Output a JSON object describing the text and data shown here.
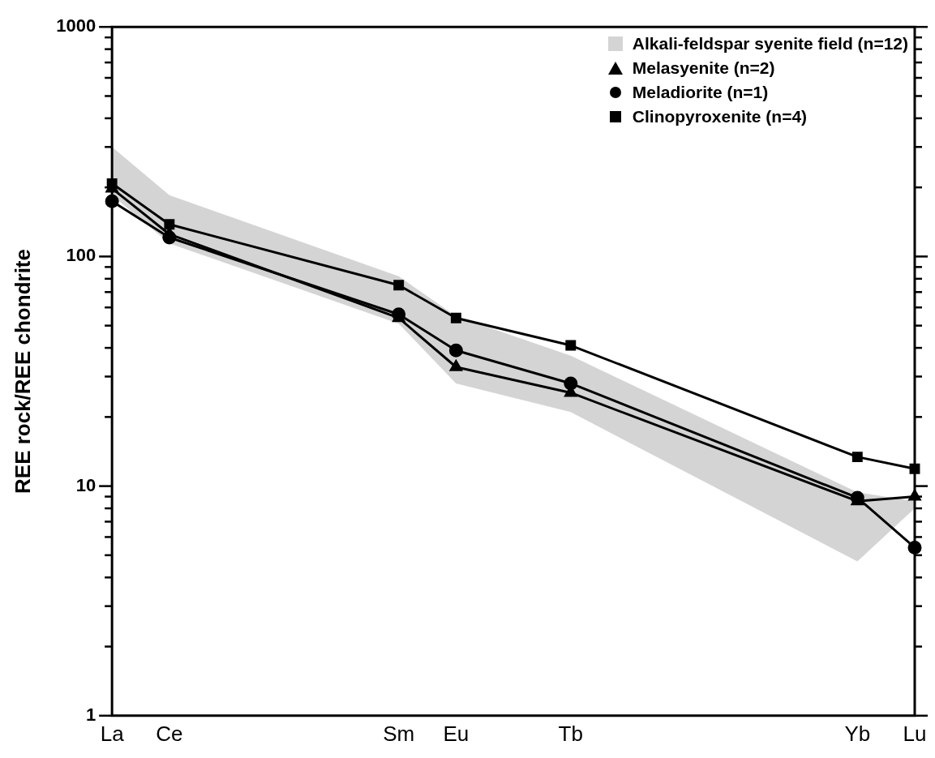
{
  "chart_data": {
    "type": "line",
    "ylabel": "REE rock/REE chondrite",
    "categories": [
      "La",
      "Ce",
      null,
      null,
      null,
      "Sm",
      "Eu",
      null,
      "Tb",
      null,
      null,
      null,
      null,
      "Yb",
      "Lu"
    ],
    "log": true,
    "ylim": [
      1,
      1000
    ],
    "yticks": [
      1,
      {
        "value": 2,
        "label": null
      },
      {
        "value": 3,
        "label": null
      },
      {
        "value": 4,
        "label": null
      },
      {
        "value": 5,
        "label": null
      },
      {
        "value": 6,
        "label": null
      },
      {
        "value": 7,
        "label": null
      },
      {
        "value": 8,
        "label": null
      },
      {
        "value": 9,
        "label": null
      },
      10,
      {
        "value": 20,
        "label": null
      },
      {
        "value": 30,
        "label": null
      },
      {
        "value": 40,
        "label": null
      },
      {
        "value": 50,
        "label": null
      },
      {
        "value": 60,
        "label": null
      },
      {
        "value": 70,
        "label": null
      },
      {
        "value": 80,
        "label": null
      },
      {
        "value": 90,
        "label": null
      },
      100,
      {
        "value": 200,
        "label": null
      },
      {
        "value": 300,
        "label": null
      },
      {
        "value": 400,
        "label": null
      },
      {
        "value": 500,
        "label": null
      },
      {
        "value": 600,
        "label": null
      },
      {
        "value": 700,
        "label": null
      },
      {
        "value": 800,
        "label": null
      },
      {
        "value": 900,
        "label": null
      },
      1000
    ],
    "grid": false,
    "legend": "top right",
    "line_style": "solid",
    "series": [
      {
        "name": "Alkali-feldspar syenite field (n=12)",
        "type": "area",
        "color": "#d4d4d4",
        "values": [
          null,
          null,
          null,
          null,
          null,
          null,
          null,
          null,
          null,
          null,
          null,
          null,
          null,
          null,
          null
        ],
        "lower": [
          185,
          114,
          null,
          null,
          null,
          51,
          28,
          null,
          21,
          null,
          null,
          null,
          null,
          4.7,
          8
        ],
        "upper": [
          300,
          185,
          null,
          null,
          null,
          82,
          55,
          null,
          37,
          null,
          null,
          null,
          null,
          9.4,
          8.6
        ]
      },
      {
        "name": "Melasyenite (n=2)",
        "color": "#000000",
        "marker": "triangle",
        "values": [
          198,
          125,
          null,
          null,
          null,
          54,
          33,
          null,
          25.5,
          null,
          null,
          null,
          null,
          8.6,
          9
        ]
      },
      {
        "name": "Meladiorite (n=1)",
        "color": "#000000",
        "marker": "circle",
        "values": [
          174,
          121,
          null,
          null,
          null,
          56,
          39,
          null,
          28,
          null,
          null,
          null,
          null,
          8.9,
          5.4
        ]
      },
      {
        "name": "Clinopyroxenite (n=4)",
        "color": "#000000",
        "marker": "square",
        "values": [
          208,
          138,
          null,
          null,
          null,
          75,
          54,
          null,
          41,
          null,
          null,
          null,
          null,
          13.4,
          11.9
        ]
      }
    ]
  }
}
